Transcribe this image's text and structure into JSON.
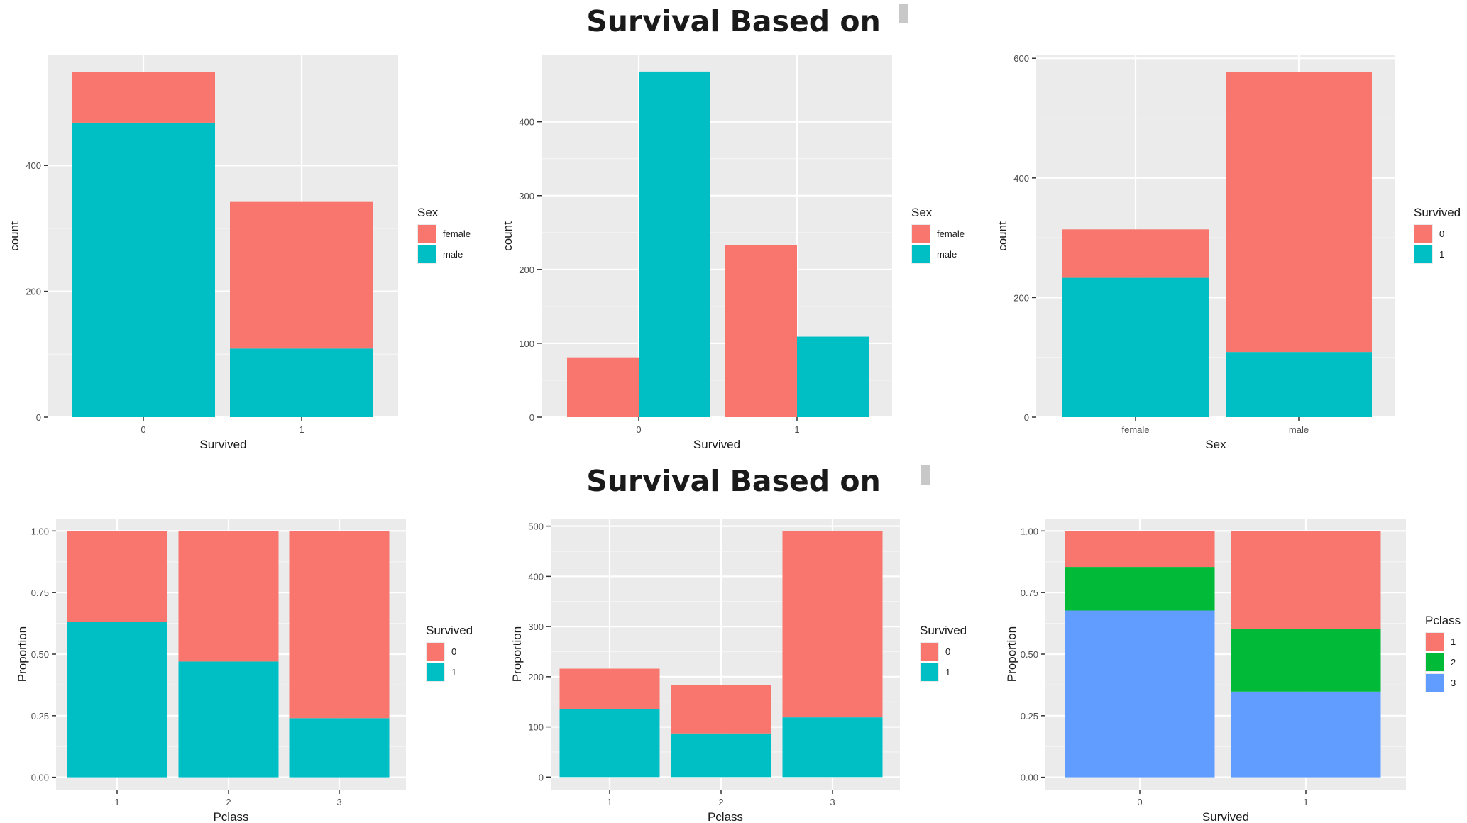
{
  "headings": {
    "top": "Survival Based on",
    "bottom": "Survival Based on"
  },
  "colors": {
    "panel_bg": "#ebebeb",
    "grid_major": "#ffffff",
    "grid_minor": "#f5f5f5",
    "red": "#f8766d",
    "teal": "#00bfc4",
    "green": "#00ba38",
    "blue": "#619cff",
    "axis_text": "#4d4d4d",
    "title_text": "#1a1a1a"
  },
  "chart_data": [
    {
      "type": "bar",
      "stacking": "stack",
      "categories": [
        "0",
        "1"
      ],
      "series": [
        {
          "name": "female",
          "color": "#f8766d",
          "values": [
            81,
            233
          ]
        },
        {
          "name": "male",
          "color": "#00bfc4",
          "values": [
            468,
            109
          ]
        }
      ],
      "xlabel": "Survived",
      "ylabel": "count",
      "ylim": [
        0,
        575
      ],
      "yticks": [
        0,
        200,
        400
      ],
      "legend": {
        "title": "Sex",
        "entries": [
          "female",
          "male"
        ]
      }
    },
    {
      "type": "bar",
      "stacking": "dodge",
      "categories": [
        "0",
        "1"
      ],
      "series": [
        {
          "name": "female",
          "color": "#f8766d",
          "values": [
            81,
            233
          ]
        },
        {
          "name": "male",
          "color": "#00bfc4",
          "values": [
            468,
            109
          ]
        }
      ],
      "xlabel": "Survived",
      "ylabel": "count",
      "ylim": [
        0,
        490
      ],
      "yticks": [
        0,
        100,
        200,
        300,
        400
      ],
      "legend": {
        "title": "Sex",
        "entries": [
          "female",
          "male"
        ]
      }
    },
    {
      "type": "bar",
      "stacking": "stack",
      "categories": [
        "female",
        "male"
      ],
      "series": [
        {
          "name": "0",
          "color": "#f8766d",
          "values": [
            81,
            468
          ]
        },
        {
          "name": "1",
          "color": "#00bfc4",
          "values": [
            233,
            109
          ]
        }
      ],
      "xlabel": "Sex",
      "ylabel": "count",
      "ylim": [
        0,
        605
      ],
      "yticks": [
        0,
        200,
        400,
        600
      ],
      "legend": {
        "title": "Survived",
        "entries": [
          "0",
          "1"
        ]
      }
    },
    {
      "type": "bar",
      "stacking": "fill",
      "categories": [
        "1",
        "2",
        "3"
      ],
      "series": [
        {
          "name": "0",
          "color": "#f8766d",
          "values": [
            0.37,
            0.53,
            0.76
          ]
        },
        {
          "name": "1",
          "color": "#00bfc4",
          "values": [
            0.63,
            0.47,
            0.24
          ]
        }
      ],
      "xlabel": "Pclass",
      "ylabel": "Proportion",
      "ylim": [
        -0.05,
        1.05
      ],
      "yticks": [
        0,
        0.25,
        0.5,
        0.75,
        1.0
      ],
      "ytick_labels": [
        "0.00",
        "0.25",
        "0.50",
        "0.75",
        "1.00"
      ],
      "legend": {
        "title": "Survived",
        "entries": [
          "0",
          "1"
        ]
      }
    },
    {
      "type": "bar",
      "stacking": "stack",
      "categories": [
        "1",
        "2",
        "3"
      ],
      "series": [
        {
          "name": "0",
          "color": "#f8766d",
          "values": [
            80,
            97,
            372
          ]
        },
        {
          "name": "1",
          "color": "#00bfc4",
          "values": [
            136,
            87,
            119
          ]
        }
      ],
      "xlabel": "Pclass",
      "ylabel": "Proportion",
      "ylim": [
        -25,
        515
      ],
      "yticks": [
        0,
        100,
        200,
        300,
        400,
        500
      ],
      "legend": {
        "title": "Survived",
        "entries": [
          "0",
          "1"
        ]
      }
    },
    {
      "type": "bar",
      "stacking": "fill",
      "categories": [
        "0",
        "1"
      ],
      "series": [
        {
          "name": "1",
          "color": "#f8766d",
          "values": [
            0.146,
            0.398
          ]
        },
        {
          "name": "2",
          "color": "#00ba38",
          "values": [
            0.177,
            0.254
          ]
        },
        {
          "name": "3",
          "color": "#619cff",
          "values": [
            0.677,
            0.348
          ]
        }
      ],
      "xlabel": "Survived",
      "ylabel": "Proportion",
      "ylim": [
        -0.05,
        1.05
      ],
      "yticks": [
        0,
        0.25,
        0.5,
        0.75,
        1.0
      ],
      "ytick_labels": [
        "0.00",
        "0.25",
        "0.50",
        "0.75",
        "1.00"
      ],
      "legend": {
        "title": "Pclass",
        "entries": [
          "1",
          "2",
          "3"
        ]
      }
    }
  ]
}
